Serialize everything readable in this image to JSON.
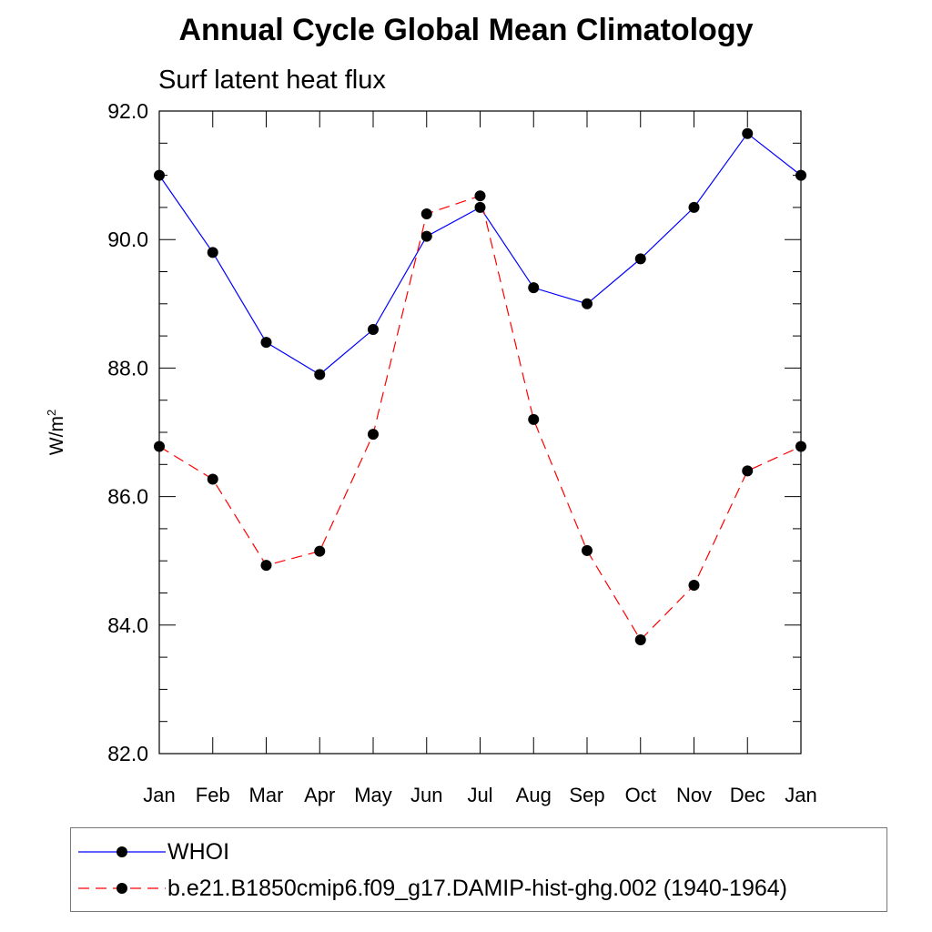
{
  "figure": {
    "title": "Annual Cycle Global Mean Climatology",
    "subtitle": "Surf latent heat flux",
    "ylabel_main": "W/m",
    "ylabel_sup": "2"
  },
  "legend": {
    "items": [
      {
        "label": "WHOI",
        "color": "#0000ff",
        "dash": "solid"
      },
      {
        "label": "b.e21.B1850cmip6.f09_g17.DAMIP-hist-ghg.002 (1940-1964)",
        "color": "#ff0000",
        "dash": "dashed"
      }
    ]
  },
  "chart_data": {
    "type": "line",
    "title": "Annual Cycle Global Mean Climatology",
    "subtitle": "Surf latent heat flux",
    "xlabel": "",
    "ylabel": "W/m2",
    "categories": [
      "Jan",
      "Feb",
      "Mar",
      "Apr",
      "May",
      "Jun",
      "Jul",
      "Aug",
      "Sep",
      "Oct",
      "Nov",
      "Dec",
      "Jan"
    ],
    "ylim": [
      82.0,
      92.0
    ],
    "yticks": [
      "82.0",
      "84.0",
      "86.0",
      "88.0",
      "90.0",
      "92.0"
    ],
    "legend_position": "bottom",
    "grid": false,
    "series": [
      {
        "name": "WHOI",
        "color": "#0000ff",
        "dash": "solid",
        "marker": "circle",
        "values": [
          91.0,
          89.8,
          88.4,
          87.9,
          88.6,
          90.05,
          90.5,
          89.25,
          89.0,
          89.7,
          90.5,
          91.65,
          91.0
        ]
      },
      {
        "name": "b.e21.B1850cmip6.f09_g17.DAMIP-hist-ghg.002 (1940-1964)",
        "color": "#ff0000",
        "dash": "dashed",
        "marker": "circle",
        "values": [
          86.78,
          86.27,
          84.93,
          85.15,
          86.97,
          90.4,
          90.68,
          87.2,
          85.16,
          83.77,
          84.62,
          86.4,
          86.78
        ]
      }
    ]
  }
}
